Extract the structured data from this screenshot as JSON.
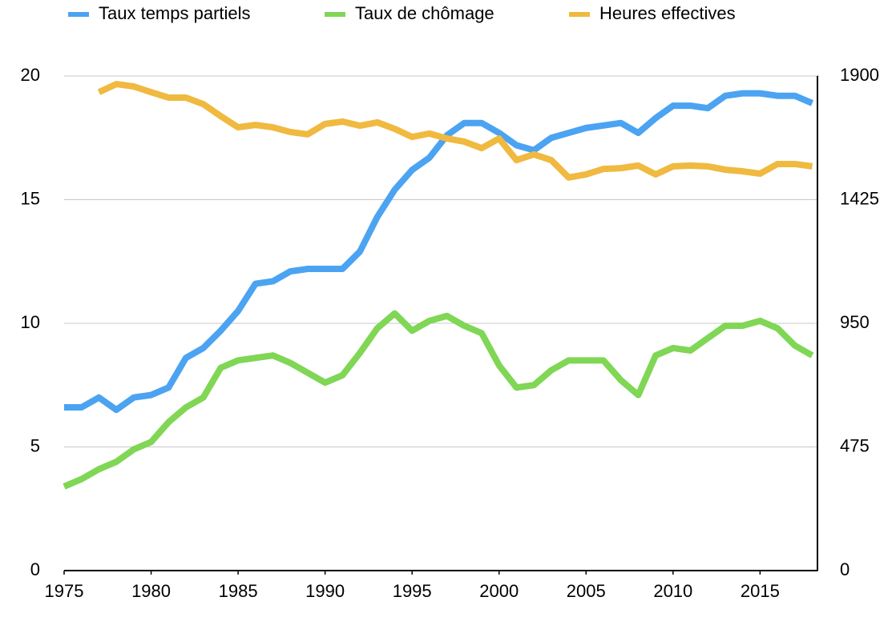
{
  "chart_data": {
    "type": "line",
    "x": [
      1975,
      1976,
      1977,
      1978,
      1979,
      1980,
      1981,
      1982,
      1983,
      1984,
      1985,
      1986,
      1987,
      1988,
      1989,
      1990,
      1991,
      1992,
      1993,
      1994,
      1995,
      1996,
      1997,
      1998,
      1999,
      2000,
      2001,
      2002,
      2003,
      2004,
      2005,
      2006,
      2007,
      2008,
      2009,
      2010,
      2011,
      2012,
      2013,
      2014,
      2015,
      2016,
      2017,
      2018
    ],
    "series": [
      {
        "name": "Taux temps partiels",
        "color": "#4ba3f2",
        "values": [
          6.6,
          6.6,
          7.0,
          6.5,
          7.0,
          7.1,
          7.4,
          8.6,
          9.0,
          9.7,
          10.5,
          11.6,
          11.7,
          12.1,
          12.2,
          12.2,
          12.2,
          12.9,
          14.3,
          15.4,
          16.2,
          16.7,
          17.6,
          18.1,
          18.1,
          17.7,
          17.2,
          17.0,
          17.5,
          17.7,
          17.9,
          18.0,
          18.1,
          17.7,
          18.3,
          18.8,
          18.8,
          18.7,
          19.2,
          19.3,
          19.3,
          19.2,
          19.2,
          18.9
        ]
      },
      {
        "name": "Taux de chômage",
        "color": "#80d655",
        "values": [
          3.4,
          3.7,
          4.1,
          4.4,
          4.9,
          5.2,
          6.0,
          6.6,
          7.0,
          8.2,
          8.5,
          8.6,
          8.7,
          8.4,
          8.0,
          7.6,
          7.9,
          8.8,
          9.8,
          10.4,
          9.7,
          10.1,
          10.3,
          9.9,
          9.6,
          8.3,
          7.4,
          7.5,
          8.1,
          8.5,
          8.5,
          8.5,
          7.7,
          7.1,
          8.7,
          9.0,
          8.9,
          9.4,
          9.9,
          9.9,
          10.1,
          9.8,
          9.1,
          8.7
        ]
      },
      {
        "name": "Heures effectives",
        "color": "#f0b93f",
        "axis": "y2",
        "values": [
          null,
          null,
          1838,
          1869,
          1860,
          1838,
          1817,
          1817,
          1792,
          1746,
          1703,
          1712,
          1703,
          1685,
          1676,
          1716,
          1725,
          1709,
          1722,
          1697,
          1666,
          1679,
          1660,
          1648,
          1623,
          1660,
          1577,
          1599,
          1577,
          1510,
          1522,
          1543,
          1546,
          1556,
          1522,
          1553,
          1556,
          1553,
          1540,
          1534,
          1525,
          1562,
          1562,
          1553
        ]
      }
    ],
    "xlim": [
      1975,
      2018.3
    ],
    "xticks": [
      1975,
      1980,
      1985,
      1990,
      1995,
      2000,
      2005,
      2010,
      2015
    ],
    "ylim": [
      0,
      20
    ],
    "yticks": [
      0,
      5,
      10,
      15,
      20
    ],
    "y2lim": [
      0,
      1900
    ],
    "y2ticks": [
      0,
      475,
      950,
      1425,
      1900
    ],
    "grid": true,
    "legend": "top"
  }
}
